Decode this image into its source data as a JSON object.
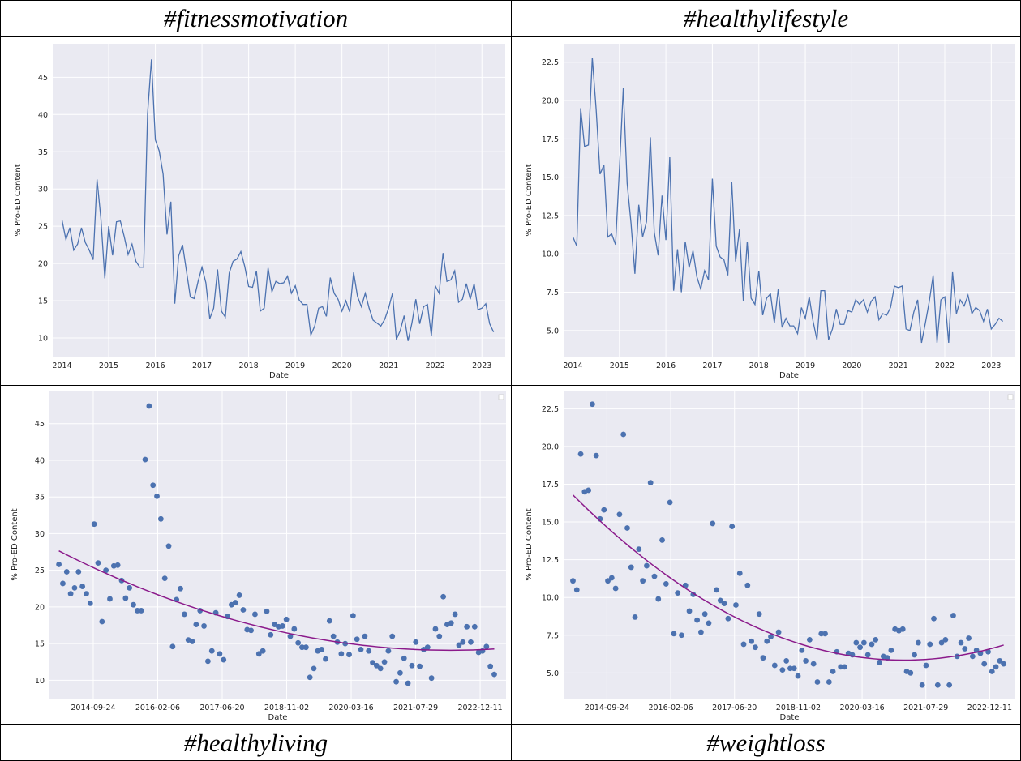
{
  "panels": [
    {
      "title": "#fitnessmotivation",
      "ylabel": "% Pro-ED Content",
      "xlabel": "Date"
    },
    {
      "title": "#healthylifestyle",
      "ylabel": "% Pro-ED Content",
      "xlabel": "Date"
    },
    {
      "title": "#healthyliving",
      "ylabel": "% Pro-ED Content",
      "xlabel": "Date"
    },
    {
      "title": "#weightloss",
      "ylabel": "% Pro-ED Content",
      "xlabel": "Date"
    }
  ],
  "chart_data": [
    {
      "type": "line",
      "title": "#fitnessmotivation",
      "xlabel": "Date",
      "ylabel": "% Pro-ED Content",
      "x_ticks": [
        "2014",
        "2015",
        "2016",
        "2017",
        "2018",
        "2019",
        "2020",
        "2021",
        "2022",
        "2023"
      ],
      "y_ticks": [
        10,
        15,
        20,
        25,
        30,
        35,
        40,
        45
      ],
      "ylim": [
        7.5,
        49.5
      ],
      "xlim": [
        2013.8,
        2023.5
      ],
      "x_start": 2014.0,
      "x_step_months": 1,
      "values": [
        25.8,
        23.2,
        24.8,
        21.8,
        22.6,
        24.8,
        22.8,
        21.8,
        20.5,
        31.3,
        26.0,
        18.0,
        25.0,
        21.1,
        25.6,
        25.7,
        23.6,
        21.2,
        22.6,
        20.3,
        19.5,
        19.5,
        40.1,
        47.4,
        36.6,
        35.1,
        32.0,
        23.9,
        28.3,
        14.6,
        21.0,
        22.5,
        19.0,
        15.5,
        15.3,
        17.6,
        19.5,
        17.4,
        12.6,
        14.0,
        19.2,
        13.6,
        12.8,
        18.7,
        20.3,
        20.6,
        21.6,
        19.6,
        16.9,
        16.8,
        19.0,
        13.6,
        14.0,
        19.4,
        16.2,
        17.6,
        17.3,
        17.4,
        18.3,
        16.0,
        17.0,
        15.1,
        14.5,
        14.5,
        10.4,
        11.6,
        14.0,
        14.2,
        12.9,
        18.1,
        16.0,
        15.2,
        13.6,
        15.0,
        13.5,
        18.8,
        15.6,
        14.2,
        16.0,
        14.0,
        12.4,
        12.0,
        11.6,
        12.5,
        14.0,
        16.0,
        9.8,
        11.0,
        13.0,
        9.6,
        12.0,
        15.2,
        11.9,
        14.2,
        14.5,
        10.3,
        17.0,
        16.0,
        21.4,
        17.6,
        17.8,
        19.0,
        14.8,
        15.2,
        17.3,
        15.2,
        17.3,
        13.8,
        14.0,
        14.6,
        11.9,
        10.8
      ]
    },
    {
      "type": "line",
      "title": "#healthylifestyle",
      "xlabel": "Date",
      "ylabel": "% Pro-ED Content",
      "x_ticks": [
        "2014",
        "2015",
        "2016",
        "2017",
        "2018",
        "2019",
        "2020",
        "2021",
        "2022",
        "2023"
      ],
      "y_ticks": [
        5.0,
        7.5,
        10.0,
        12.5,
        15.0,
        17.5,
        20.0,
        22.5
      ],
      "ylim": [
        3.3,
        23.7
      ],
      "xlim": [
        2013.8,
        2023.5
      ],
      "x_start": 2014.0,
      "x_step_months": 1,
      "values": [
        11.1,
        10.5,
        19.5,
        17.0,
        17.1,
        22.8,
        19.4,
        15.2,
        15.8,
        11.1,
        11.3,
        10.6,
        15.5,
        20.8,
        14.6,
        12.0,
        8.7,
        13.2,
        11.1,
        12.1,
        17.6,
        11.4,
        9.9,
        13.8,
        10.9,
        16.3,
        7.6,
        10.3,
        7.5,
        10.8,
        9.1,
        10.2,
        8.5,
        7.7,
        8.9,
        8.3,
        14.9,
        10.5,
        9.8,
        9.6,
        8.6,
        14.7,
        9.5,
        11.6,
        6.9,
        10.8,
        7.1,
        6.7,
        8.9,
        6.0,
        7.1,
        7.4,
        5.5,
        7.7,
        5.2,
        5.8,
        5.3,
        5.3,
        4.8,
        6.5,
        5.8,
        7.2,
        5.6,
        4.4,
        7.6,
        7.6,
        4.4,
        5.1,
        6.4,
        5.4,
        5.4,
        6.3,
        6.2,
        7.0,
        6.7,
        7.0,
        6.2,
        6.9,
        7.2,
        5.7,
        6.1,
        6.0,
        6.5,
        7.9,
        7.8,
        7.9,
        5.1,
        5.0,
        6.2,
        7.0,
        4.2,
        5.5,
        6.9,
        8.6,
        4.2,
        7.0,
        7.2,
        4.2,
        8.8,
        6.1,
        7.0,
        6.6,
        7.3,
        6.1,
        6.5,
        6.3,
        5.6,
        6.4,
        5.1,
        5.4,
        5.8,
        5.6
      ]
    },
    {
      "type": "scatter",
      "title": "#healthyliving",
      "xlabel": "Date",
      "ylabel": "% Pro-ED Content",
      "x_ticks": [
        "2014-09-24",
        "2016-02-06",
        "2017-06-20",
        "2018-11-02",
        "2020-03-16",
        "2021-07-29",
        "2022-12-11"
      ],
      "y_ticks": [
        10,
        15,
        20,
        25,
        30,
        35,
        40,
        45
      ],
      "ylim": [
        7.5,
        49.5
      ],
      "trend_line": {
        "color": "#8b1a8b",
        "values": [
          27.6,
          14.2
        ],
        "shape": "quadratic"
      },
      "values": "same as #fitnessmotivation"
    },
    {
      "type": "scatter",
      "title": "#weightloss",
      "xlabel": "Date",
      "ylabel": "% Pro-ED Content",
      "x_ticks": [
        "2014-09-24",
        "2016-02-06",
        "2017-06-20",
        "2018-11-02",
        "2020-03-16",
        "2021-07-29",
        "2022-12-11"
      ],
      "y_ticks": [
        5.0,
        7.5,
        10.0,
        12.5,
        15.0,
        17.5,
        20.0,
        22.5
      ],
      "ylim": [
        3.3,
        23.7
      ],
      "trend_line": {
        "color": "#8b1a8b",
        "values": [
          16.8,
          6.9
        ],
        "shape": "quadratic"
      },
      "values": "same as #healthylifestyle"
    }
  ],
  "colors": {
    "plot_bg": "#eaeaf2",
    "grid": "#ffffff",
    "line": "#4c72b0",
    "trend": "#8b1a8b",
    "frame": "#dddddd"
  }
}
